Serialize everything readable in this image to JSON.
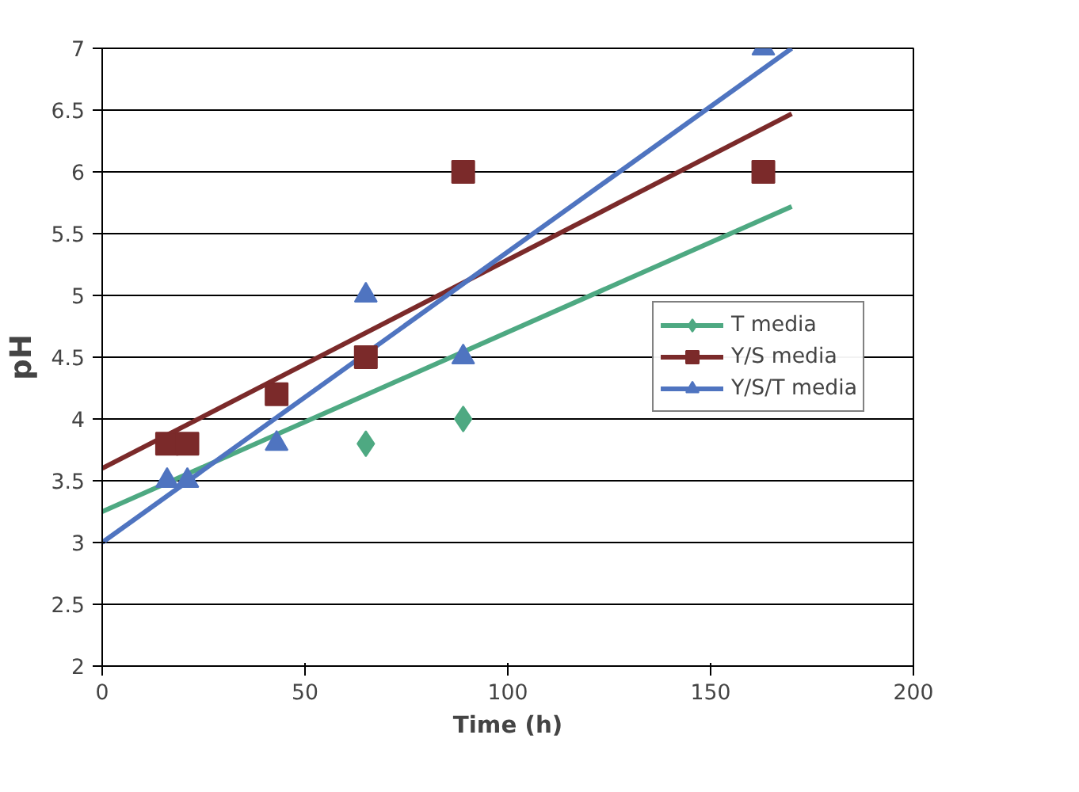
{
  "chart_data": {
    "type": "scatter",
    "xlabel": "Time (h)",
    "ylabel": "pH",
    "xlim": [
      0,
      200
    ],
    "xticks": [
      0,
      50,
      100,
      150,
      200
    ],
    "ylim": [
      2,
      7
    ],
    "yticks": [
      2,
      2.5,
      3,
      3.5,
      4,
      4.5,
      5,
      5.5,
      6,
      6.5,
      7
    ],
    "grid": "y",
    "legend": "right",
    "series": [
      {
        "name": "T media",
        "color": "#4ea982",
        "marker": "diamond",
        "x": [
          65,
          89
        ],
        "values": [
          3.8,
          4.0
        ]
      },
      {
        "name": "Y/S media",
        "color": "#7b2a2a",
        "marker": "square",
        "x": [
          16,
          21,
          43,
          65,
          89,
          163
        ],
        "values": [
          3.8,
          3.8,
          4.2,
          4.5,
          6.0,
          6.0
        ]
      },
      {
        "name": "Y/S/T media",
        "color": "#4f74c0",
        "marker": "triangle",
        "x": [
          16,
          21,
          43,
          65,
          89,
          163
        ],
        "values": [
          3.5,
          3.5,
          3.8,
          5.0,
          4.5,
          7.0
        ]
      },
      {
        "type": "line",
        "color": "#4ea982",
        "x": [
          0,
          170
        ],
        "values": [
          3.25,
          5.72
        ]
      },
      {
        "type": "line",
        "color": "#7b2a2a",
        "x": [
          0,
          170
        ],
        "values": [
          3.6,
          6.47
        ]
      },
      {
        "type": "line",
        "color": "#4f74c0",
        "x": [
          0,
          170
        ],
        "values": [
          3.0,
          7.0
        ]
      }
    ]
  }
}
